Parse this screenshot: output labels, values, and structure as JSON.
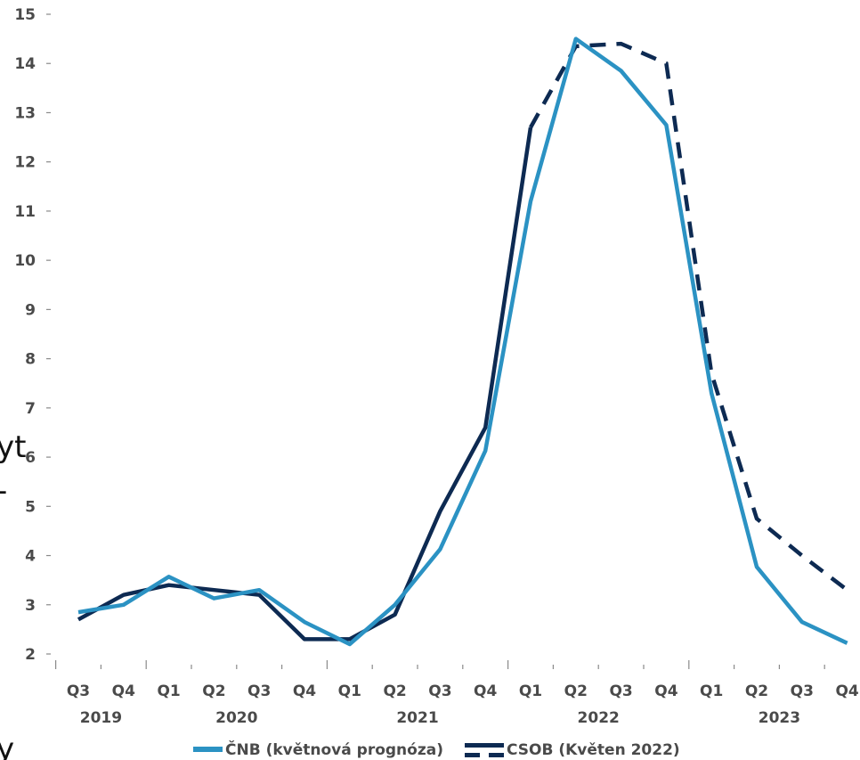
{
  "chart_data": {
    "type": "line",
    "title": "",
    "xlabel": "",
    "ylabel": "",
    "ylim": [
      2,
      15
    ],
    "yticks": [
      2,
      3,
      4,
      5,
      6,
      7,
      8,
      9,
      10,
      11,
      12,
      13,
      14,
      15
    ],
    "categories": [
      "Q3",
      "Q4",
      "Q1",
      "Q2",
      "Q3",
      "Q4",
      "Q1",
      "Q2",
      "Q3",
      "Q4",
      "Q1",
      "Q2",
      "Q3",
      "Q4",
      "Q1",
      "Q2",
      "Q3",
      "Q4"
    ],
    "year_labels": [
      {
        "label": "2019",
        "from": 0,
        "to": 1
      },
      {
        "label": "2020",
        "from": 2,
        "to": 5
      },
      {
        "label": "2021",
        "from": 6,
        "to": 9
      },
      {
        "label": "2022",
        "from": 10,
        "to": 13
      },
      {
        "label": "2023",
        "from": 14,
        "to": 17
      }
    ],
    "grid": false,
    "legend_position": "bottom",
    "series": [
      {
        "name": "ČNB (květnová prognóza)",
        "color": "#2b92c3",
        "style": "solid",
        "values": [
          2.85,
          3.0,
          3.57,
          3.13,
          3.3,
          2.65,
          2.2,
          3.0,
          4.13,
          6.13,
          11.2,
          14.5,
          13.85,
          12.75,
          7.3,
          3.77,
          2.65,
          2.22
        ]
      },
      {
        "name": "CSOB (Květen 2022)",
        "color": "#0d2a52",
        "style": "solid-dashed",
        "dash_from_index": 11,
        "values": [
          2.7,
          3.2,
          3.4,
          3.3,
          3.2,
          2.3,
          2.3,
          2.8,
          4.9,
          6.6,
          12.7,
          14.35,
          14.4,
          14.0,
          7.7,
          4.75,
          4.0,
          3.3
        ]
      }
    ],
    "left_edge_text": [
      "yt",
      "-",
      "y"
    ]
  }
}
